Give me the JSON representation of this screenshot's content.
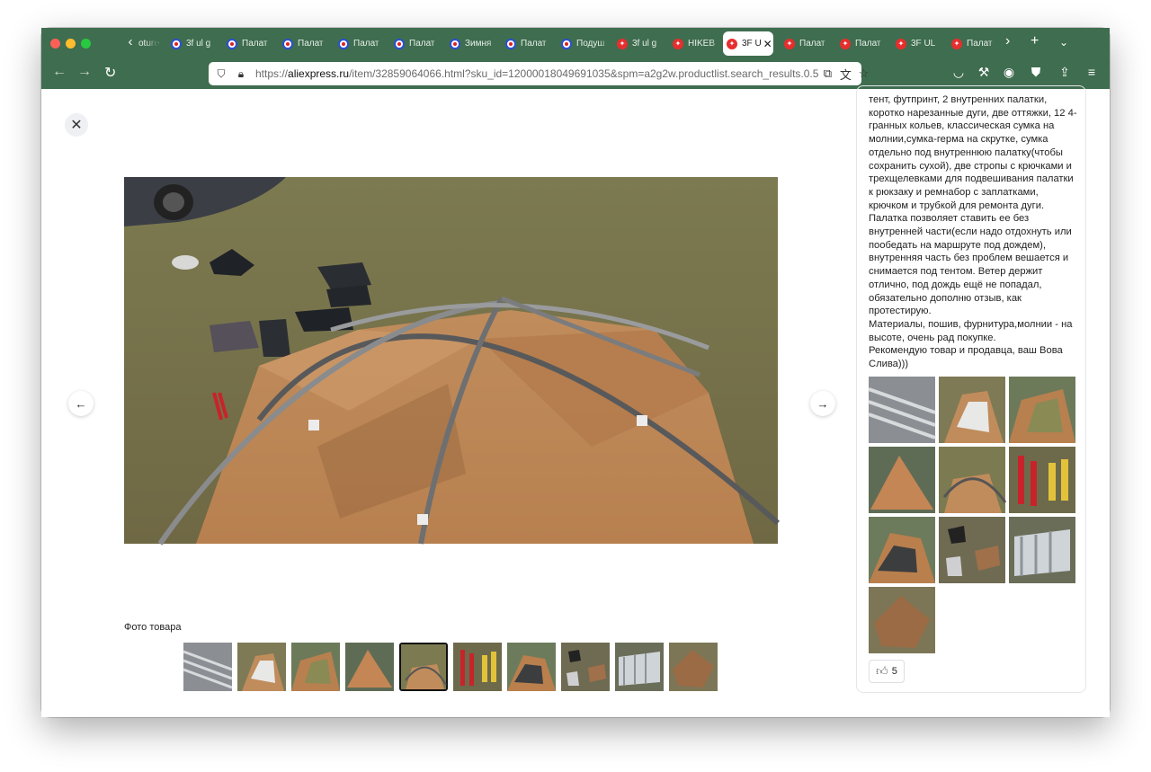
{
  "browser": {
    "tabs": [
      {
        "label": "oture",
        "favicon": "generic-page-icon",
        "active": false
      },
      {
        "label": "3f ul g",
        "favicon": "ozon-icon",
        "active": false
      },
      {
        "label": "Палат",
        "favicon": "ozon-icon",
        "active": false
      },
      {
        "label": "Палат",
        "favicon": "ozon-icon",
        "active": false
      },
      {
        "label": "Палат",
        "favicon": "ozon-icon",
        "active": false
      },
      {
        "label": "Палат",
        "favicon": "ozon-icon",
        "active": false
      },
      {
        "label": "Зимня",
        "favicon": "ozon-icon",
        "active": false
      },
      {
        "label": "Палат",
        "favicon": "ozon-icon",
        "active": false
      },
      {
        "label": "Подуш",
        "favicon": "ozon-icon",
        "active": false
      },
      {
        "label": "3f ul g",
        "favicon": "aliexpress-icon",
        "active": false
      },
      {
        "label": "HIKEB",
        "favicon": "aliexpress-icon",
        "active": false
      },
      {
        "label": "3F U",
        "favicon": "aliexpress-icon",
        "active": true
      },
      {
        "label": "Палат",
        "favicon": "aliexpress-icon",
        "active": false
      },
      {
        "label": "Палат",
        "favicon": "aliexpress-icon",
        "active": false
      },
      {
        "label": "3F UL",
        "favicon": "aliexpress-icon",
        "active": false
      },
      {
        "label": "Палат",
        "favicon": "aliexpress-icon",
        "active": false
      }
    ],
    "url_prefix": "https://",
    "url_domain": "aliexpress.ru",
    "url_path": "/item/32859064066.html?sku_id=12000018049691035&spm=a2g2w.productlist.search_results.0.5"
  },
  "gallery": {
    "title": "Фото товара",
    "thumbnail_count": 10,
    "active_index": 4
  },
  "review": {
    "text": "тент, футпринт, 2 внутренних палатки, коротко нарезанные дуги, две оттяжки, 12 4-гранных кольев, классическая сумка на молнии,сумка-герма на скрутке, сумка отдельно под внутреннюю палатку(чтобы сохранить сухой), две стропы с крючками и трехщелевками для подвешивания палатки к рюкзаку и ремнабор с заплатками, крючком и трубкой для ремонта дуги. Палатка позволяет ставить ее без внутренней части(если надо отдохнуть или пообедать на маршруте под дождем), внутренняя часть без проблем вешается и снимается под тентом. Ветер держит отлично, под дождь ещё не попадал, обязательно дополню отзыв, как протестирую.\nМатериалы, пошив, фурнитура,молнии - на высоте, очень рад покупке.\nРекомендую товар и продавца, ваш Вова Слива)))",
    "photo_count": 10,
    "likes": "5"
  }
}
